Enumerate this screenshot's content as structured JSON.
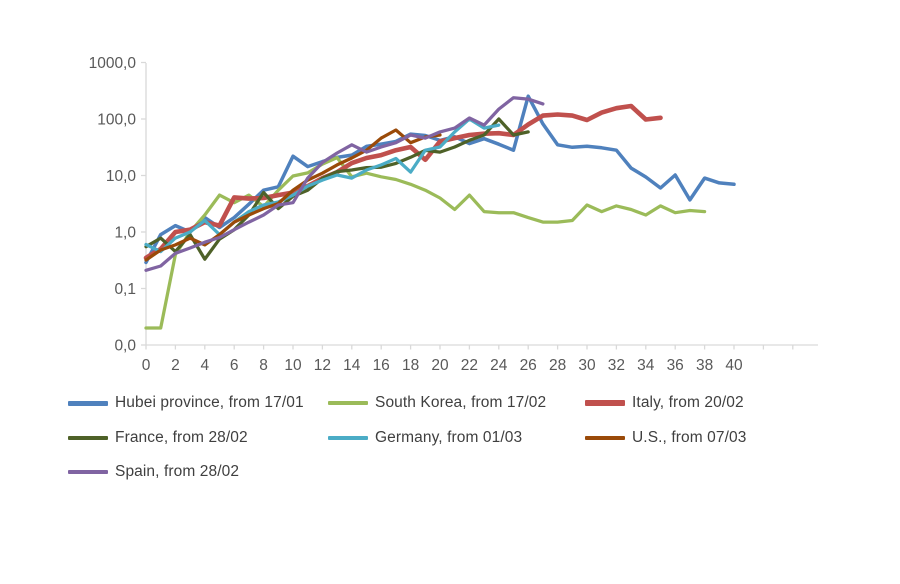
{
  "chart_data": {
    "type": "line",
    "title": "",
    "xlabel": "",
    "ylabel": "",
    "y_scale": "log",
    "ylim": [
      0.01,
      1000
    ],
    "grid": false,
    "legend_position": "bottom-left",
    "y_ticks": [
      {
        "label": "1000,0",
        "value": 1000
      },
      {
        "label": "100,0",
        "value": 100
      },
      {
        "label": "10,0",
        "value": 10
      },
      {
        "label": "1,0",
        "value": 1
      },
      {
        "label": "0,1",
        "value": 0.1
      },
      {
        "label": "0,0",
        "value": 0.01
      }
    ],
    "x_tick_labels": [
      "0",
      "2",
      "4",
      "6",
      "8",
      "10",
      "12",
      "14",
      "16",
      "18",
      "20",
      "22",
      "24",
      "26",
      "28",
      "30",
      "32",
      "34",
      "36",
      "38",
      "40"
    ],
    "x_tick_step": 2,
    "x_unlabeled_tick_days": [
      42,
      44
    ],
    "colors": {
      "axis": "#d9d9d9",
      "tick_text": "#595959",
      "legend_text": "#3f3f3f",
      "background": "#ffffff"
    },
    "series": [
      {
        "name": "Hubei province, from 17/01",
        "slug": "hubei-province",
        "color": "#4f81bd",
        "line_width": 3.5,
        "values": [
          0.29,
          0.9,
          1.3,
          1.0,
          1.8,
          1.2,
          1.8,
          3.1,
          5.5,
          6.3,
          22,
          14.4,
          17.6,
          20.9,
          23,
          32.8,
          36,
          40,
          54,
          51,
          41.8,
          48.6,
          36.7,
          44.8,
          35.8,
          28,
          253,
          82,
          35,
          31.5,
          33,
          30.9,
          28,
          13.5,
          9.4,
          6.0,
          10.2,
          3.7,
          9.0,
          7.4,
          7.0
        ]
      },
      {
        "name": "South Korea, from 17/02",
        "slug": "south-korea",
        "color": "#9bbb59",
        "line_width": 3.25,
        "values": [
          0.02,
          0.02,
          0.4,
          1.0,
          2.0,
          4.5,
          3.3,
          4.5,
          2.8,
          5.5,
          9.8,
          11.1,
          15.9,
          20.7,
          9.5,
          11.0,
          9.5,
          8.5,
          7.0,
          5.5,
          4.0,
          2.5,
          4.5,
          2.3,
          2.2,
          2.2,
          1.8,
          1.5,
          1.5,
          1.6,
          3.0,
          2.3,
          2.9,
          2.5,
          2.0,
          2.9,
          2.2,
          2.4,
          2.3
        ]
      },
      {
        "name": "Italy, from 20/02",
        "slug": "italy",
        "color": "#c0504d",
        "line_width": 4.6,
        "values": [
          0.35,
          0.5,
          1.0,
          1.1,
          1.5,
          1.3,
          4.1,
          3.9,
          4.0,
          4.5,
          5.0,
          6.5,
          9.0,
          11.5,
          16.6,
          20.4,
          23,
          28,
          32,
          19,
          40,
          46,
          52,
          55,
          56,
          52,
          80,
          115,
          120,
          115,
          96,
          130,
          155,
          170,
          98,
          105
        ]
      },
      {
        "name": "France, from 28/02",
        "slug": "france",
        "color": "#4e6128",
        "line_width": 3.25,
        "values": [
          0.55,
          0.78,
          0.45,
          0.9,
          0.33,
          0.75,
          1.1,
          2.0,
          5.0,
          2.6,
          4.3,
          5.5,
          8.9,
          11.7,
          12.5,
          13.8,
          14,
          16.4,
          21,
          27.8,
          26,
          32,
          42,
          52,
          100,
          52,
          59
        ]
      },
      {
        "name": "Germany, from 01/03",
        "slug": "germany",
        "color": "#4bacc6",
        "line_width": 3.25,
        "values": [
          0.6,
          0.45,
          0.78,
          1.0,
          1.6,
          0.9,
          1.5,
          2.3,
          3.0,
          3.4,
          4.5,
          6.5,
          8.3,
          10.2,
          9.0,
          12.5,
          15.4,
          20,
          11.5,
          28,
          32,
          59,
          100,
          69,
          78
        ]
      },
      {
        "name": "U.S., from 07/03",
        "slug": "us",
        "color": "#9a4a09",
        "line_width": 3.25,
        "values": [
          0.32,
          0.48,
          0.59,
          0.78,
          0.59,
          0.9,
          1.5,
          2.0,
          2.6,
          3.2,
          5.5,
          8.3,
          11,
          15.4,
          20.4,
          28,
          46,
          64,
          38,
          48,
          52
        ]
      },
      {
        "name": "Spain, from 28/02",
        "slug": "spain",
        "color": "#8064a2",
        "line_width": 3.25,
        "values": [
          0.21,
          0.25,
          0.42,
          0.52,
          0.66,
          0.8,
          1.1,
          1.5,
          2.0,
          3.0,
          3.3,
          9,
          17,
          25,
          35,
          26,
          32,
          38,
          52,
          46,
          59,
          69,
          104,
          78,
          150,
          238,
          225,
          185
        ]
      }
    ]
  }
}
